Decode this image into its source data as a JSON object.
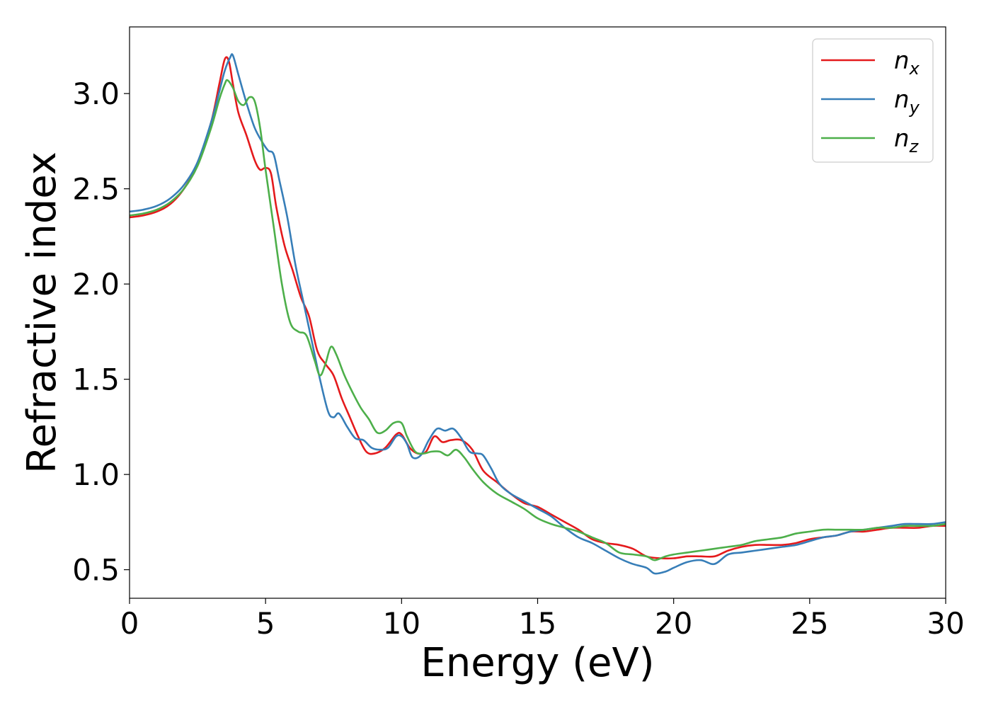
{
  "chart_data": {
    "type": "line",
    "title": "",
    "xlabel": "Energy (eV)",
    "ylabel": "Refractive index",
    "xlim": [
      0,
      30
    ],
    "ylim": [
      0.35,
      3.35
    ],
    "xticks": [
      0,
      5,
      10,
      15,
      20,
      25,
      30
    ],
    "xtick_labels": [
      "0",
      "5",
      "10",
      "15",
      "20",
      "25",
      "30"
    ],
    "yticks": [
      0.5,
      1.0,
      1.5,
      2.0,
      2.5,
      3.0
    ],
    "ytick_labels": [
      "0.5",
      "1.0",
      "1.5",
      "2.0",
      "2.5",
      "3.0"
    ],
    "grid": false,
    "legend_position": "top-right",
    "series": [
      {
        "name": "n_x",
        "label_main": "n",
        "label_sub": "x",
        "color": "#e41a1c",
        "points": [
          [
            0,
            2.35
          ],
          [
            0.5,
            2.36
          ],
          [
            1,
            2.38
          ],
          [
            1.5,
            2.42
          ],
          [
            2,
            2.5
          ],
          [
            2.5,
            2.63
          ],
          [
            3,
            2.85
          ],
          [
            3.3,
            3.05
          ],
          [
            3.5,
            3.18
          ],
          [
            3.65,
            3.17
          ],
          [
            3.8,
            3.05
          ],
          [
            4,
            2.9
          ],
          [
            4.3,
            2.78
          ],
          [
            4.6,
            2.65
          ],
          [
            4.8,
            2.6
          ],
          [
            5,
            2.61
          ],
          [
            5.2,
            2.58
          ],
          [
            5.4,
            2.4
          ],
          [
            5.7,
            2.2
          ],
          [
            6,
            2.07
          ],
          [
            6.3,
            1.93
          ],
          [
            6.6,
            1.83
          ],
          [
            6.9,
            1.65
          ],
          [
            7.2,
            1.58
          ],
          [
            7.5,
            1.52
          ],
          [
            7.8,
            1.4
          ],
          [
            8.1,
            1.3
          ],
          [
            8.4,
            1.2
          ],
          [
            8.7,
            1.12
          ],
          [
            9,
            1.11
          ],
          [
            9.4,
            1.14
          ],
          [
            9.8,
            1.21
          ],
          [
            10,
            1.21
          ],
          [
            10.3,
            1.14
          ],
          [
            10.6,
            1.11
          ],
          [
            10.9,
            1.12
          ],
          [
            11.2,
            1.2
          ],
          [
            11.5,
            1.17
          ],
          [
            11.8,
            1.18
          ],
          [
            12.2,
            1.18
          ],
          [
            12.6,
            1.13
          ],
          [
            13,
            1.02
          ],
          [
            13.5,
            0.96
          ],
          [
            14,
            0.9
          ],
          [
            14.5,
            0.85
          ],
          [
            15,
            0.83
          ],
          [
            15.5,
            0.79
          ],
          [
            16,
            0.75
          ],
          [
            16.5,
            0.71
          ],
          [
            17,
            0.66
          ],
          [
            17.5,
            0.64
          ],
          [
            18,
            0.63
          ],
          [
            18.5,
            0.61
          ],
          [
            19,
            0.57
          ],
          [
            19.5,
            0.56
          ],
          [
            20,
            0.56
          ],
          [
            20.5,
            0.57
          ],
          [
            21,
            0.57
          ],
          [
            21.5,
            0.57
          ],
          [
            22,
            0.6
          ],
          [
            22.5,
            0.62
          ],
          [
            23,
            0.63
          ],
          [
            23.5,
            0.63
          ],
          [
            24,
            0.63
          ],
          [
            24.5,
            0.64
          ],
          [
            25,
            0.66
          ],
          [
            25.5,
            0.67
          ],
          [
            26,
            0.68
          ],
          [
            26.5,
            0.7
          ],
          [
            27,
            0.7
          ],
          [
            27.5,
            0.71
          ],
          [
            28,
            0.72
          ],
          [
            28.5,
            0.72
          ],
          [
            29,
            0.72
          ],
          [
            29.5,
            0.73
          ],
          [
            30,
            0.73
          ]
        ]
      },
      {
        "name": "n_y",
        "label_main": "n",
        "label_sub": "y",
        "color": "#377eb8",
        "points": [
          [
            0,
            2.38
          ],
          [
            0.5,
            2.39
          ],
          [
            1,
            2.41
          ],
          [
            1.5,
            2.45
          ],
          [
            2,
            2.52
          ],
          [
            2.5,
            2.64
          ],
          [
            3,
            2.85
          ],
          [
            3.3,
            3.01
          ],
          [
            3.5,
            3.12
          ],
          [
            3.7,
            3.19
          ],
          [
            3.8,
            3.2
          ],
          [
            4,
            3.1
          ],
          [
            4.3,
            2.95
          ],
          [
            4.6,
            2.82
          ],
          [
            4.9,
            2.74
          ],
          [
            5.1,
            2.7
          ],
          [
            5.3,
            2.68
          ],
          [
            5.5,
            2.55
          ],
          [
            5.8,
            2.35
          ],
          [
            6.1,
            2.1
          ],
          [
            6.4,
            1.9
          ],
          [
            6.7,
            1.7
          ],
          [
            7,
            1.5
          ],
          [
            7.3,
            1.33
          ],
          [
            7.5,
            1.3
          ],
          [
            7.7,
            1.32
          ],
          [
            8,
            1.25
          ],
          [
            8.3,
            1.19
          ],
          [
            8.6,
            1.18
          ],
          [
            8.9,
            1.14
          ],
          [
            9.2,
            1.13
          ],
          [
            9.5,
            1.14
          ],
          [
            9.8,
            1.2
          ],
          [
            10,
            1.2
          ],
          [
            10.2,
            1.16
          ],
          [
            10.4,
            1.09
          ],
          [
            10.7,
            1.1
          ],
          [
            11,
            1.18
          ],
          [
            11.3,
            1.24
          ],
          [
            11.6,
            1.23
          ],
          [
            11.9,
            1.24
          ],
          [
            12.2,
            1.19
          ],
          [
            12.5,
            1.12
          ],
          [
            12.8,
            1.11
          ],
          [
            13,
            1.1
          ],
          [
            13.3,
            1.03
          ],
          [
            13.6,
            0.95
          ],
          [
            14,
            0.9
          ],
          [
            14.5,
            0.86
          ],
          [
            15,
            0.82
          ],
          [
            15.5,
            0.78
          ],
          [
            16,
            0.72
          ],
          [
            16.5,
            0.67
          ],
          [
            17,
            0.64
          ],
          [
            17.5,
            0.6
          ],
          [
            18,
            0.56
          ],
          [
            18.5,
            0.53
          ],
          [
            19,
            0.51
          ],
          [
            19.3,
            0.48
          ],
          [
            19.7,
            0.49
          ],
          [
            20,
            0.51
          ],
          [
            20.5,
            0.54
          ],
          [
            21,
            0.55
          ],
          [
            21.5,
            0.53
          ],
          [
            22,
            0.58
          ],
          [
            22.5,
            0.59
          ],
          [
            23,
            0.6
          ],
          [
            23.5,
            0.61
          ],
          [
            24,
            0.62
          ],
          [
            24.5,
            0.63
          ],
          [
            25,
            0.65
          ],
          [
            25.5,
            0.67
          ],
          [
            26,
            0.68
          ],
          [
            26.5,
            0.7
          ],
          [
            27,
            0.71
          ],
          [
            27.5,
            0.72
          ],
          [
            28,
            0.73
          ],
          [
            28.5,
            0.74
          ],
          [
            29,
            0.74
          ],
          [
            29.5,
            0.74
          ],
          [
            30,
            0.75
          ]
        ]
      },
      {
        "name": "n_z",
        "label_main": "n",
        "label_sub": "z",
        "color": "#4daf4a",
        "points": [
          [
            0,
            2.36
          ],
          [
            0.5,
            2.37
          ],
          [
            1,
            2.39
          ],
          [
            1.5,
            2.43
          ],
          [
            2,
            2.5
          ],
          [
            2.5,
            2.62
          ],
          [
            3,
            2.82
          ],
          [
            3.3,
            2.97
          ],
          [
            3.5,
            3.05
          ],
          [
            3.6,
            3.07
          ],
          [
            3.8,
            3.03
          ],
          [
            4,
            2.96
          ],
          [
            4.2,
            2.94
          ],
          [
            4.4,
            2.98
          ],
          [
            4.6,
            2.96
          ],
          [
            4.8,
            2.82
          ],
          [
            5,
            2.6
          ],
          [
            5.3,
            2.3
          ],
          [
            5.6,
            2.0
          ],
          [
            5.9,
            1.8
          ],
          [
            6.2,
            1.75
          ],
          [
            6.5,
            1.73
          ],
          [
            6.8,
            1.6
          ],
          [
            7,
            1.52
          ],
          [
            7.2,
            1.58
          ],
          [
            7.4,
            1.67
          ],
          [
            7.6,
            1.63
          ],
          [
            7.9,
            1.52
          ],
          [
            8.2,
            1.43
          ],
          [
            8.5,
            1.35
          ],
          [
            8.8,
            1.29
          ],
          [
            9.1,
            1.22
          ],
          [
            9.4,
            1.23
          ],
          [
            9.7,
            1.27
          ],
          [
            10,
            1.27
          ],
          [
            10.2,
            1.2
          ],
          [
            10.5,
            1.12
          ],
          [
            10.8,
            1.11
          ],
          [
            11.1,
            1.12
          ],
          [
            11.4,
            1.12
          ],
          [
            11.7,
            1.1
          ],
          [
            12,
            1.13
          ],
          [
            12.3,
            1.09
          ],
          [
            12.6,
            1.03
          ],
          [
            13,
            0.96
          ],
          [
            13.5,
            0.9
          ],
          [
            14,
            0.86
          ],
          [
            14.5,
            0.82
          ],
          [
            15,
            0.77
          ],
          [
            15.5,
            0.74
          ],
          [
            16,
            0.72
          ],
          [
            16.5,
            0.7
          ],
          [
            17,
            0.67
          ],
          [
            17.5,
            0.64
          ],
          [
            18,
            0.59
          ],
          [
            18.5,
            0.58
          ],
          [
            19,
            0.57
          ],
          [
            19.3,
            0.55
          ],
          [
            19.7,
            0.57
          ],
          [
            20,
            0.58
          ],
          [
            20.5,
            0.59
          ],
          [
            21,
            0.6
          ],
          [
            21.5,
            0.61
          ],
          [
            22,
            0.62
          ],
          [
            22.5,
            0.63
          ],
          [
            23,
            0.65
          ],
          [
            23.5,
            0.66
          ],
          [
            24,
            0.67
          ],
          [
            24.5,
            0.69
          ],
          [
            25,
            0.7
          ],
          [
            25.5,
            0.71
          ],
          [
            26,
            0.71
          ],
          [
            26.5,
            0.71
          ],
          [
            27,
            0.71
          ],
          [
            27.5,
            0.72
          ],
          [
            28,
            0.72
          ],
          [
            28.5,
            0.73
          ],
          [
            29,
            0.73
          ],
          [
            29.5,
            0.73
          ],
          [
            30,
            0.74
          ]
        ]
      }
    ]
  }
}
